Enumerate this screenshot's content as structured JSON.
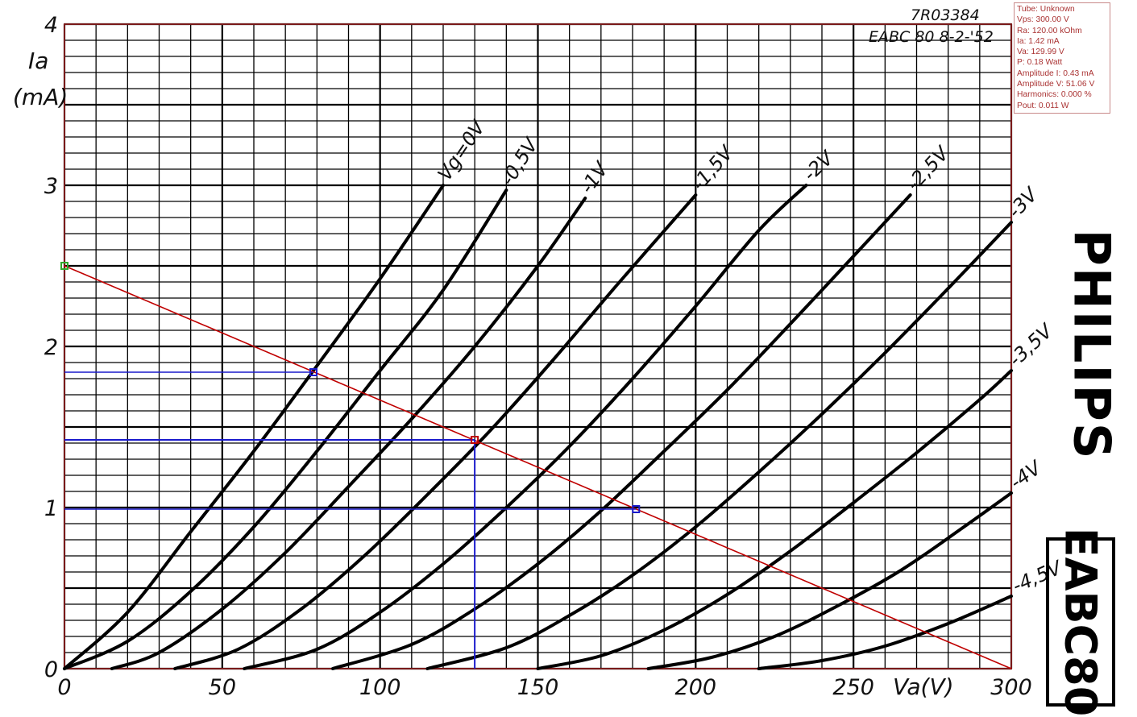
{
  "info_panel": {
    "lines": [
      "Tube: Unknown",
      "Vps: 300.00 V",
      "Ra: 120.00 kOhm",
      "Ia: 1.42 mA",
      "Va: 129.99 V",
      "P: 0.18 Watt",
      "Amplitude I: 0.43 mA",
      "Amplitude V: 51.06 V",
      "Harmonics: 0.000 %",
      "Pout: 0.011 W"
    ]
  },
  "sheet": {
    "code": "7R03384",
    "subtitle": "EABC 80  8-2-'52",
    "brand": "PHILIPS",
    "model": "EABC80"
  },
  "chart_data": {
    "type": "line",
    "title": "",
    "xlabel": "Va(V)",
    "ylabel_symbol": "Ia",
    "ylabel_unit": "(mA)",
    "xlim": [
      0,
      300
    ],
    "ylim": [
      0,
      4
    ],
    "x_ticks": [
      "0",
      "50",
      "100",
      "150",
      "200",
      "250",
      "300"
    ],
    "y_ticks": [
      "0",
      "1",
      "2",
      "3",
      "4"
    ],
    "grid": true,
    "series": [
      {
        "name": "Vg=0V",
        "label": "Vg=0V",
        "points": [
          [
            0,
            0
          ],
          [
            20,
            0.35
          ],
          [
            40,
            0.85
          ],
          [
            60,
            1.35
          ],
          [
            80,
            1.88
          ],
          [
            100,
            2.42
          ],
          [
            120,
            3.0
          ]
        ]
      },
      {
        "name": "-0.5V",
        "label": "-0,5V",
        "points": [
          [
            0,
            0
          ],
          [
            20,
            0.17
          ],
          [
            40,
            0.48
          ],
          [
            60,
            0.88
          ],
          [
            80,
            1.35
          ],
          [
            100,
            1.85
          ],
          [
            120,
            2.35
          ],
          [
            140,
            2.97
          ]
        ]
      },
      {
        "name": "-1V",
        "label": "-1V",
        "points": [
          [
            15,
            0
          ],
          [
            30,
            0.1
          ],
          [
            50,
            0.37
          ],
          [
            70,
            0.72
          ],
          [
            90,
            1.13
          ],
          [
            110,
            1.55
          ],
          [
            130,
            2.0
          ],
          [
            150,
            2.5
          ],
          [
            165,
            2.92
          ]
        ]
      },
      {
        "name": "-1.5V",
        "label": "-1,5V",
        "points": [
          [
            35,
            0
          ],
          [
            55,
            0.12
          ],
          [
            75,
            0.37
          ],
          [
            95,
            0.7
          ],
          [
            115,
            1.08
          ],
          [
            135,
            1.48
          ],
          [
            155,
            1.92
          ],
          [
            175,
            2.38
          ],
          [
            200,
            2.94
          ]
        ]
      },
      {
        "name": "-2V",
        "label": "-2V",
        "points": [
          [
            57,
            0
          ],
          [
            80,
            0.12
          ],
          [
            100,
            0.35
          ],
          [
            120,
            0.65
          ],
          [
            140,
            1.0
          ],
          [
            160,
            1.38
          ],
          [
            180,
            1.8
          ],
          [
            200,
            2.25
          ],
          [
            220,
            2.72
          ],
          [
            235,
            3.0
          ]
        ]
      },
      {
        "name": "-2.5V",
        "label": "-2,5V",
        "points": [
          [
            85,
            0
          ],
          [
            110,
            0.15
          ],
          [
            130,
            0.37
          ],
          [
            150,
            0.65
          ],
          [
            170,
            0.98
          ],
          [
            190,
            1.35
          ],
          [
            210,
            1.73
          ],
          [
            230,
            2.14
          ],
          [
            250,
            2.56
          ],
          [
            268,
            2.94
          ]
        ]
      },
      {
        "name": "-3V",
        "label": "-3V",
        "points": [
          [
            115,
            0
          ],
          [
            140,
            0.13
          ],
          [
            160,
            0.33
          ],
          [
            180,
            0.58
          ],
          [
            200,
            0.88
          ],
          [
            220,
            1.22
          ],
          [
            240,
            1.58
          ],
          [
            260,
            1.96
          ],
          [
            280,
            2.36
          ],
          [
            300,
            2.77
          ]
        ]
      },
      {
        "name": "-3.5V",
        "label": "-3,5V",
        "points": [
          [
            150,
            0
          ],
          [
            170,
            0.08
          ],
          [
            190,
            0.24
          ],
          [
            210,
            0.46
          ],
          [
            230,
            0.73
          ],
          [
            250,
            1.03
          ],
          [
            270,
            1.34
          ],
          [
            290,
            1.67
          ],
          [
            300,
            1.85
          ]
        ]
      },
      {
        "name": "-4V",
        "label": "-4V",
        "points": [
          [
            185,
            0
          ],
          [
            205,
            0.07
          ],
          [
            225,
            0.2
          ],
          [
            245,
            0.39
          ],
          [
            265,
            0.61
          ],
          [
            285,
            0.88
          ],
          [
            300,
            1.09
          ]
        ]
      },
      {
        "name": "-4.5V",
        "label": "-4,5V",
        "points": [
          [
            220,
            0
          ],
          [
            240,
            0.05
          ],
          [
            260,
            0.14
          ],
          [
            280,
            0.28
          ],
          [
            300,
            0.45
          ]
        ]
      }
    ],
    "load_line": {
      "x": [
        0,
        300
      ],
      "y": [
        2.5,
        0
      ]
    },
    "operating_point": {
      "va": 129.99,
      "ia": 1.42
    },
    "swing_points": [
      {
        "va": 78.9,
        "ia": 1.84
      },
      {
        "va": 181.1,
        "ia": 0.99
      }
    ]
  },
  "colors": {
    "curves": "#000000",
    "grid": "#000000",
    "load_line": "#c00000",
    "guides": "#1a1acc",
    "info_text": "#aa3333",
    "start_marker": "#2ea82e"
  }
}
